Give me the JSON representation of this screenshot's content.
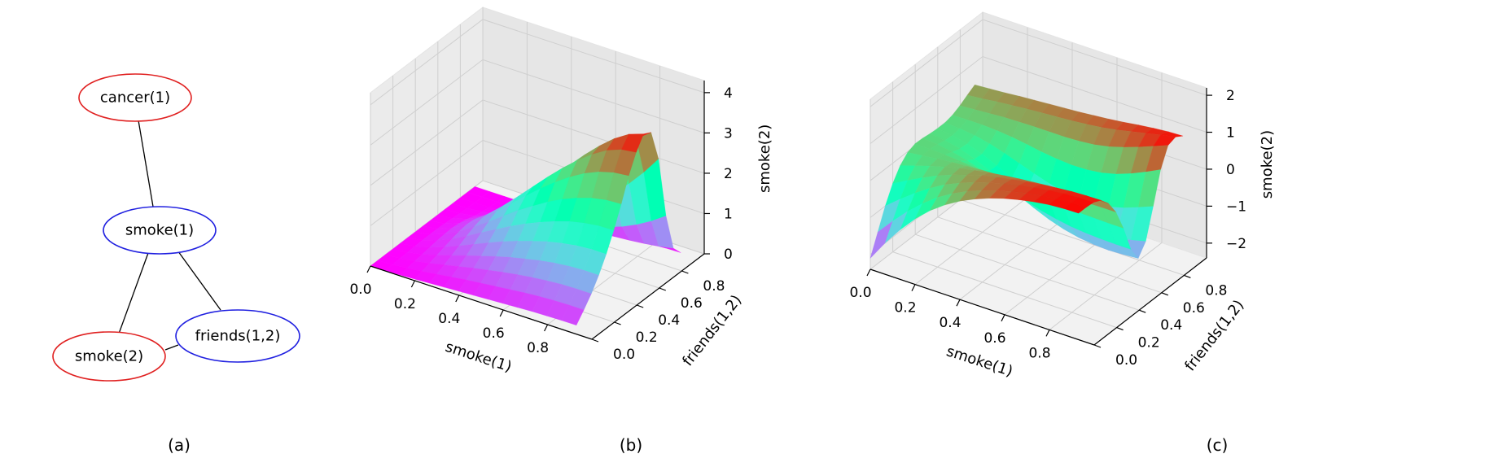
{
  "graph": {
    "nodes": [
      {
        "id": "cancer",
        "label": "cancer(1)",
        "color": "#e02020"
      },
      {
        "id": "smoke1",
        "label": "smoke(1)",
        "color": "#2020e0"
      },
      {
        "id": "smoke2",
        "label": "smoke(2)",
        "color": "#e02020"
      },
      {
        "id": "friends",
        "label": "friends(1,2)",
        "color": "#2020e0"
      }
    ],
    "edges": [
      [
        "cancer",
        "smoke1"
      ],
      [
        "smoke1",
        "smoke2"
      ],
      [
        "smoke1",
        "friends"
      ],
      [
        "smoke2",
        "friends"
      ]
    ]
  },
  "panel_labels": [
    "(a)",
    "(b)",
    "(c)"
  ],
  "chart_data": [
    {
      "type": "surface3d",
      "panel": "(b)",
      "xlabel": "smoke(1)",
      "ylabel": "friends(1,2)",
      "zlabel": "smoke(2)",
      "xlim": [
        0,
        1
      ],
      "ylim": [
        0,
        1
      ],
      "zlim": [
        0,
        4.3
      ],
      "xticks": [
        "0.0",
        "0.2",
        "0.4",
        "0.6",
        "0.8"
      ],
      "yticks": [
        "0.0",
        "0.2",
        "0.4",
        "0.6",
        "0.8"
      ],
      "zticks": [
        "0",
        "1",
        "2",
        "3",
        "4"
      ],
      "colormap": "rainbow",
      "x": [
        0,
        0.0714,
        0.1429,
        0.2143,
        0.2857,
        0.3571,
        0.4286,
        0.5,
        0.5714,
        0.6429,
        0.7143,
        0.7857,
        0.8571,
        0.9286,
        1
      ],
      "y": [
        0,
        0.0714,
        0.1429,
        0.2143,
        0.2857,
        0.3571,
        0.4286,
        0.5,
        0.5714,
        0.6429,
        0.7143,
        0.7857,
        0.8571,
        0.9286,
        1
      ],
      "z": [
        [
          0,
          0.01,
          0.02,
          0.04,
          0.06,
          0.08,
          0.1,
          0.12,
          0.14,
          0.16,
          0.18,
          0.2,
          0.21,
          0.22,
          0.22
        ],
        [
          0,
          0.02,
          0.05,
          0.09,
          0.14,
          0.19,
          0.24,
          0.28,
          0.32,
          0.36,
          0.4,
          0.43,
          0.45,
          0.46,
          0.46
        ],
        [
          0,
          0.03,
          0.08,
          0.15,
          0.23,
          0.31,
          0.39,
          0.46,
          0.53,
          0.59,
          0.64,
          0.68,
          0.71,
          0.72,
          0.72
        ],
        [
          0,
          0.04,
          0.11,
          0.21,
          0.32,
          0.44,
          0.55,
          0.66,
          0.76,
          0.84,
          0.92,
          0.98,
          1.02,
          1.04,
          1.04
        ],
        [
          0,
          0.05,
          0.14,
          0.27,
          0.42,
          0.58,
          0.74,
          0.89,
          1.02,
          1.14,
          1.25,
          1.33,
          1.39,
          1.42,
          1.42
        ],
        [
          0,
          0.06,
          0.17,
          0.33,
          0.52,
          0.73,
          0.93,
          1.13,
          1.31,
          1.47,
          1.61,
          1.73,
          1.81,
          1.86,
          1.87
        ],
        [
          0,
          0.06,
          0.19,
          0.38,
          0.61,
          0.86,
          1.12,
          1.38,
          1.61,
          1.83,
          2.02,
          2.17,
          2.29,
          2.36,
          2.38
        ],
        [
          0,
          0.06,
          0.2,
          0.41,
          0.67,
          0.97,
          1.29,
          1.6,
          1.9,
          2.18,
          2.43,
          2.64,
          2.8,
          2.9,
          2.94
        ],
        [
          0,
          0.05,
          0.18,
          0.39,
          0.66,
          0.98,
          1.33,
          1.69,
          2.05,
          2.39,
          2.7,
          2.97,
          3.19,
          3.33,
          3.38
        ],
        [
          0,
          0.04,
          0.14,
          0.32,
          0.56,
          0.86,
          1.21,
          1.58,
          1.96,
          2.33,
          2.7,
          3.04,
          3.34,
          3.57,
          3.7
        ],
        [
          0,
          0.02,
          0.08,
          0.2,
          0.36,
          0.58,
          0.85,
          1.15,
          1.48,
          1.84,
          2.21,
          2.6,
          2.98,
          3.32,
          3.6
        ],
        [
          0,
          0.01,
          0.04,
          0.09,
          0.17,
          0.28,
          0.42,
          0.59,
          0.8,
          1.03,
          1.3,
          1.6,
          1.95,
          2.35,
          2.8
        ],
        [
          0,
          0.0,
          0.01,
          0.03,
          0.06,
          0.1,
          0.15,
          0.21,
          0.29,
          0.38,
          0.49,
          0.62,
          0.79,
          1.0,
          1.25
        ],
        [
          0,
          0.0,
          0.0,
          0.01,
          0.01,
          0.02,
          0.03,
          0.05,
          0.06,
          0.08,
          0.11,
          0.14,
          0.18,
          0.23,
          0.3
        ],
        [
          0,
          0.0,
          0.0,
          0.0,
          0.0,
          0.0,
          0.01,
          0.01,
          0.01,
          0.01,
          0.02,
          0.02,
          0.03,
          0.04,
          0.05
        ]
      ]
    },
    {
      "type": "surface3d",
      "panel": "(c)",
      "xlabel": "smoke(1)",
      "ylabel": "friends(1,2)",
      "zlabel": "smoke(2)",
      "xlim": [
        0,
        1
      ],
      "ylim": [
        0,
        1
      ],
      "zlim": [
        -2.4,
        2.2
      ],
      "xticks": [
        "0.0",
        "0.2",
        "0.4",
        "0.6",
        "0.8"
      ],
      "yticks": [
        "0.0",
        "0.2",
        "0.4",
        "0.6",
        "0.8"
      ],
      "zticks": [
        "−2",
        "−1",
        "0",
        "1",
        "2"
      ],
      "colormap": "rainbow",
      "x": [
        0,
        0.0714,
        0.1429,
        0.2143,
        0.2857,
        0.3571,
        0.4286,
        0.5,
        0.5714,
        0.6429,
        0.7143,
        0.7857,
        0.8571,
        0.9286,
        1
      ],
      "y": [
        0,
        0.0714,
        0.1429,
        0.2143,
        0.2857,
        0.3571,
        0.4286,
        0.5,
        0.5714,
        0.6429,
        0.7143,
        0.7857,
        0.8571,
        0.9286,
        1
      ],
      "z": [
        [
          -2.1,
          -1.55,
          -1.06,
          -0.63,
          -0.27,
          0.02,
          0.26,
          0.45,
          0.61,
          0.74,
          0.84,
          0.92,
          0.98,
          1.01,
          1.02
        ],
        [
          -1.55,
          -1.12,
          -0.72,
          -0.37,
          -0.07,
          0.17,
          0.37,
          0.53,
          0.66,
          0.77,
          0.86,
          0.93,
          0.98,
          1.01,
          1.02
        ],
        [
          -1.0,
          -0.68,
          -0.38,
          -0.11,
          0.12,
          0.3,
          0.46,
          0.58,
          0.69,
          0.78,
          0.86,
          0.92,
          0.96,
          0.99,
          1.0
        ],
        [
          -0.55,
          -0.33,
          -0.12,
          0.07,
          0.23,
          0.36,
          0.48,
          0.57,
          0.65,
          0.72,
          0.78,
          0.83,
          0.87,
          0.89,
          0.9
        ],
        [
          -0.22,
          -0.09,
          0.04,
          0.15,
          0.25,
          0.33,
          0.4,
          0.46,
          0.51,
          0.55,
          0.59,
          0.62,
          0.64,
          0.66,
          0.66
        ],
        [
          -0.02,
          0.03,
          0.08,
          0.12,
          0.15,
          0.18,
          0.2,
          0.22,
          0.23,
          0.24,
          0.25,
          0.26,
          0.26,
          0.27,
          0.27
        ],
        [
          0.06,
          0.05,
          0.03,
          0.0,
          -0.04,
          -0.08,
          -0.13,
          -0.17,
          -0.21,
          -0.25,
          -0.28,
          -0.3,
          -0.31,
          -0.32,
          -0.32
        ],
        [
          0.05,
          0.02,
          -0.05,
          -0.15,
          -0.28,
          -0.42,
          -0.57,
          -0.7,
          -0.82,
          -0.91,
          -0.98,
          -1.02,
          -1.04,
          -1.05,
          -1.05
        ],
        [
          0.02,
          -0.03,
          -0.12,
          -0.26,
          -0.44,
          -0.64,
          -0.85,
          -1.04,
          -1.21,
          -1.34,
          -1.43,
          -1.48,
          -1.5,
          -1.48,
          -1.45
        ],
        [
          0.0,
          -0.05,
          -0.14,
          -0.28,
          -0.46,
          -0.66,
          -0.86,
          -1.04,
          -1.2,
          -1.3,
          -1.36,
          -1.37,
          -1.33,
          -1.25,
          -1.15
        ],
        [
          0.0,
          -0.02,
          -0.07,
          -0.16,
          -0.28,
          -0.42,
          -0.56,
          -0.69,
          -0.79,
          -0.84,
          -0.84,
          -0.78,
          -0.67,
          -0.52,
          -0.36
        ],
        [
          0.05,
          0.06,
          0.06,
          0.04,
          0.0,
          -0.06,
          -0.13,
          -0.18,
          -0.21,
          -0.2,
          -0.15,
          -0.05,
          0.1,
          0.28,
          0.48
        ],
        [
          0.15,
          0.18,
          0.21,
          0.24,
          0.25,
          0.26,
          0.26,
          0.26,
          0.28,
          0.32,
          0.4,
          0.52,
          0.66,
          0.82,
          0.98
        ],
        [
          0.28,
          0.32,
          0.37,
          0.41,
          0.45,
          0.48,
          0.51,
          0.54,
          0.58,
          0.63,
          0.7,
          0.79,
          0.88,
          0.97,
          1.05
        ],
        [
          0.4,
          0.43,
          0.46,
          0.5,
          0.53,
          0.56,
          0.59,
          0.62,
          0.66,
          0.7,
          0.75,
          0.81,
          0.86,
          0.9,
          0.92
        ]
      ]
    }
  ]
}
